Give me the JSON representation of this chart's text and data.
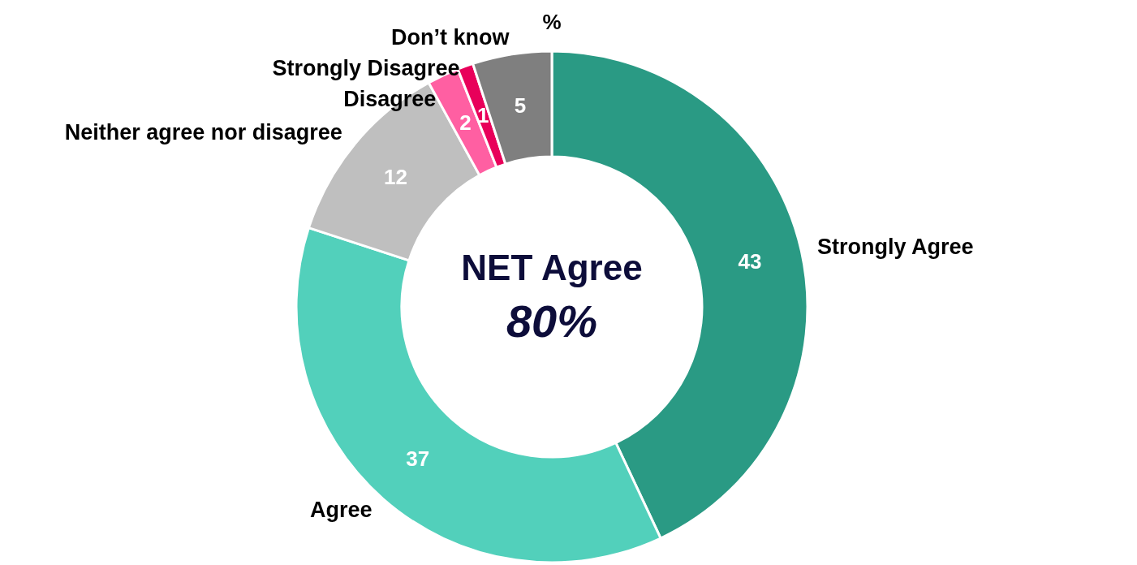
{
  "chart_data": {
    "type": "donut",
    "categories": [
      "Strongly Agree",
      "Agree",
      "Neither agree nor disagree",
      "Disagree",
      "Strongly Disagree",
      "Don’t know"
    ],
    "values": [
      43,
      37,
      12,
      2,
      1,
      5
    ],
    "colors": [
      "#2a9a84",
      "#52d0bb",
      "#bfbfbf",
      "#ff5fa2",
      "#e8005a",
      "#7f7f7f"
    ],
    "data_labels": true,
    "annotations": [
      "%",
      "NET Agree",
      "80%"
    ]
  }
}
